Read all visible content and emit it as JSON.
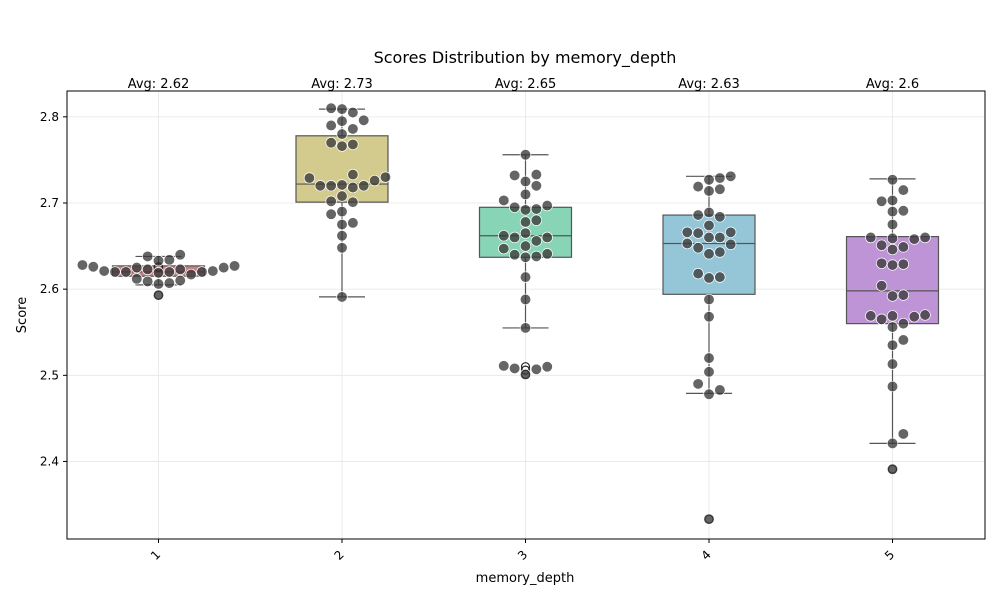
{
  "chart_data": {
    "type": "box",
    "title": "Scores Distribution by memory_depth",
    "xlabel": "memory_depth",
    "ylabel": "Score",
    "categories": [
      "1",
      "2",
      "3",
      "4",
      "5"
    ],
    "ylim": [
      2.31,
      2.83
    ],
    "yticks": [
      2.4,
      2.5,
      2.6,
      2.7,
      2.8
    ],
    "ytick_labels": [
      "2.4",
      "2.5",
      "2.6",
      "2.7",
      "2.8"
    ],
    "grid": true,
    "box_colors": [
      "#c97f86",
      "#d3ca8d",
      "#88d4b6",
      "#94c6d8",
      "#bf94d6"
    ],
    "point_color": "#3a3a3a",
    "avg_labels": [
      "Avg: 2.62",
      "Avg: 2.73",
      "Avg: 2.65",
      "Avg: 2.63",
      "Avg: 2.6"
    ],
    "boxes": [
      {
        "category": "1",
        "whisker_low": 2.605,
        "q1": 2.615,
        "median": 2.62,
        "q3": 2.627,
        "whisker_high": 2.638,
        "outliers": [
          2.593,
          2.625,
          2.626
        ]
      },
      {
        "category": "2",
        "whisker_low": 2.591,
        "q1": 2.701,
        "median": 2.722,
        "q3": 2.778,
        "whisker_high": 2.809,
        "outliers": []
      },
      {
        "category": "3",
        "whisker_low": 2.555,
        "q1": 2.637,
        "median": 2.662,
        "q3": 2.695,
        "whisker_high": 2.756,
        "outliers": [
          2.501,
          2.506,
          2.51
        ]
      },
      {
        "category": "4",
        "whisker_low": 2.479,
        "q1": 2.594,
        "median": 2.653,
        "q3": 2.686,
        "whisker_high": 2.731,
        "outliers": [
          2.333
        ]
      },
      {
        "category": "5",
        "whisker_low": 2.421,
        "q1": 2.56,
        "median": 2.598,
        "q3": 2.661,
        "whisker_high": 2.728,
        "outliers": [
          2.391
        ]
      }
    ],
    "points": [
      [
        2.628,
        2.623,
        2.62,
        2.617,
        2.612,
        2.623,
        2.609,
        2.621,
        2.606,
        2.633,
        2.64,
        2.619,
        2.625,
        2.607,
        2.593,
        2.62,
        2.638,
        2.61,
        2.627,
        2.62,
        2.634,
        2.62,
        2.621,
        2.625,
        2.626
      ],
      [
        2.73,
        2.729,
        2.79,
        2.721,
        2.786,
        2.805,
        2.701,
        2.677,
        2.72,
        2.766,
        2.69,
        2.733,
        2.78,
        2.795,
        2.81,
        2.809,
        2.648,
        2.675,
        2.662,
        2.718,
        2.77,
        2.591,
        2.708,
        2.702,
        2.687,
        2.768,
        2.72,
        2.796,
        2.72,
        2.726
      ],
      [
        2.507,
        2.65,
        2.732,
        2.697,
        2.693,
        2.665,
        2.72,
        2.662,
        2.66,
        2.692,
        2.641,
        2.68,
        2.725,
        2.647,
        2.614,
        2.637,
        2.588,
        2.555,
        2.51,
        2.508,
        2.501,
        2.756,
        2.71,
        2.678,
        2.64,
        2.656,
        2.733,
        2.695,
        2.638,
        2.66,
        2.511,
        2.703
      ],
      [
        2.66,
        2.652,
        2.643,
        2.613,
        2.686,
        2.483,
        2.716,
        2.727,
        2.666,
        2.729,
        2.588,
        2.568,
        2.52,
        2.504,
        2.478,
        2.333,
        2.665,
        2.641,
        2.684,
        2.714,
        2.66,
        2.648,
        2.614,
        2.618,
        2.719,
        2.666,
        2.689,
        2.653,
        2.674,
        2.49,
        2.731
      ],
      [
        2.57,
        2.691,
        2.569,
        2.651,
        2.629,
        2.541,
        2.592,
        2.63,
        2.56,
        2.675,
        2.432,
        2.727,
        2.715,
        2.649,
        2.659,
        2.593,
        2.646,
        2.556,
        2.535,
        2.487,
        2.513,
        2.421,
        2.391,
        2.628,
        2.604,
        2.565,
        2.69,
        2.66,
        2.702,
        2.569,
        2.658,
        2.703,
        2.568,
        2.66
      ]
    ]
  }
}
